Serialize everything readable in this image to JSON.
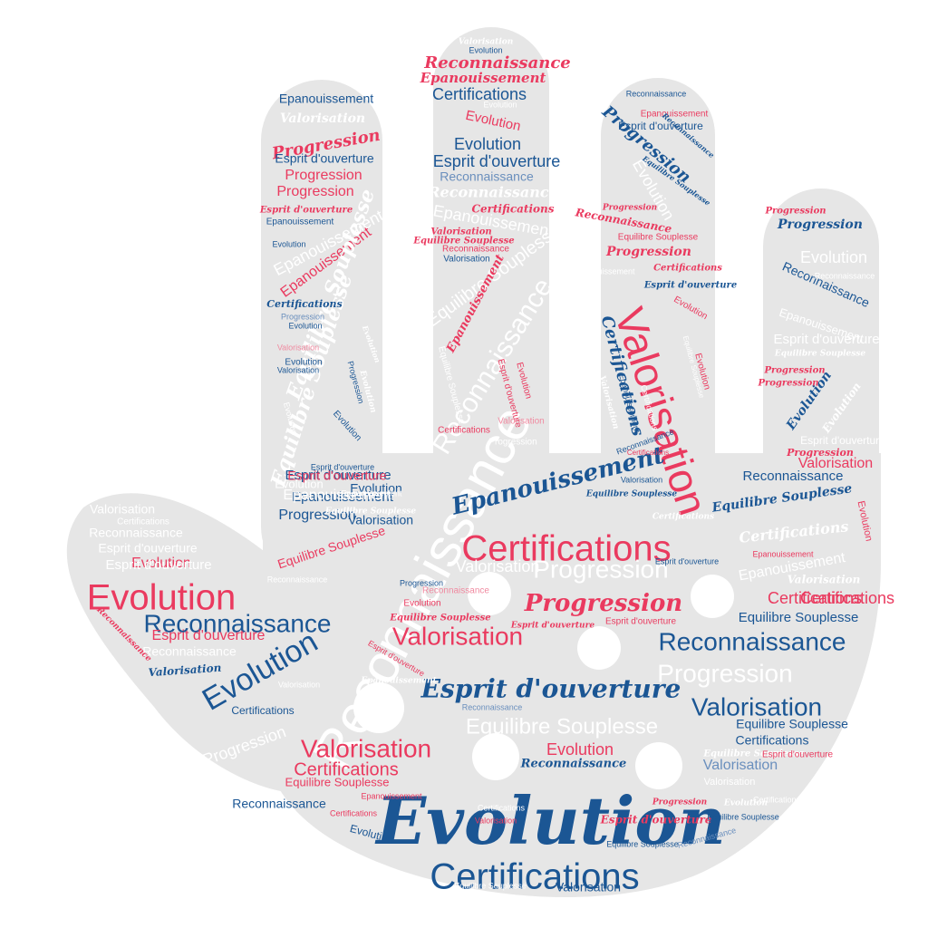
{
  "colors": {
    "hand": "#e6e6e6",
    "pink": "#ea3a5f",
    "blue": "#1b5694",
    "white": "#ffffff",
    "lightblue": "#6a8fbd",
    "lightpink": "#f08aa0"
  },
  "words": [
    {
      "text": "Evolution",
      "color": "blue",
      "style": "script"
    },
    {
      "text": "Certifications",
      "color": "blue",
      "style": "sans"
    },
    {
      "text": "Reconnaissance",
      "color": "white",
      "style": "sans"
    },
    {
      "text": "Valorisation",
      "color": "pink",
      "style": "sans"
    },
    {
      "text": "Certifications",
      "color": "pink",
      "style": "sans"
    },
    {
      "text": "Evolution",
      "color": "pink",
      "style": "sans"
    },
    {
      "text": "Reconnaissance",
      "color": "blue",
      "style": "sans"
    },
    {
      "text": "Evolution",
      "color": "blue",
      "style": "sans"
    },
    {
      "text": "Epanouissement",
      "color": "blue",
      "style": "script"
    },
    {
      "text": "Progression",
      "color": "pink",
      "style": "script"
    },
    {
      "text": "Esprit d'ouverture",
      "color": "blue",
      "style": "script"
    },
    {
      "text": "Valorisation",
      "color": "pink",
      "style": "sans"
    },
    {
      "text": "Reconnaissance",
      "color": "blue",
      "style": "sans"
    },
    {
      "text": "Progression",
      "color": "white",
      "style": "sans"
    },
    {
      "text": "Valorisation",
      "color": "blue",
      "style": "sans"
    },
    {
      "text": "Equilibre Souplesse",
      "color": "white",
      "style": "sans"
    },
    {
      "text": "Valorisation",
      "color": "pink",
      "style": "sans"
    },
    {
      "text": "Progression",
      "color": "white",
      "style": "sans"
    },
    {
      "text": "Reconnaissance",
      "color": "white",
      "style": "sans"
    },
    {
      "text": "Equilibre Souplesse",
      "color": "white",
      "style": "script"
    },
    {
      "text": "Epanouissement",
      "color": "white",
      "style": "sans"
    },
    {
      "text": "Evolution",
      "color": "white",
      "style": "sans"
    },
    {
      "text": "Evolution",
      "color": "blue",
      "style": "sans"
    },
    {
      "text": "Valorisation",
      "color": "white",
      "style": "sans"
    },
    {
      "text": "Esprit d'ouverture",
      "color": "blue",
      "style": "sans"
    },
    {
      "text": "Progression",
      "color": "blue",
      "style": "sans"
    },
    {
      "text": "Certifications",
      "color": "pink",
      "style": "sans"
    },
    {
      "text": "Epanouissement",
      "color": "blue",
      "style": "sans"
    },
    {
      "text": "Certifications",
      "color": "pink",
      "style": "sans"
    },
    {
      "text": "Epanouissement",
      "color": "white",
      "style": "sans"
    },
    {
      "text": "Esprit d'ouverture",
      "color": "pink",
      "style": "sans"
    },
    {
      "text": "Evolution",
      "color": "pink",
      "style": "sans"
    },
    {
      "text": "Equilibre Souplesse",
      "color": "pink",
      "style": "sans"
    },
    {
      "text": "Esprit d'ouverture",
      "color": "pink",
      "style": "sans"
    },
    {
      "text": "Valorisation",
      "color": "white",
      "style": "sans"
    },
    {
      "text": "Reconnaissance",
      "color": "white",
      "style": "sans"
    },
    {
      "text": "Esprit d'ouverture",
      "color": "white",
      "style": "sans"
    },
    {
      "text": "Esprit d'ouverture",
      "color": "white",
      "style": "sans"
    },
    {
      "text": "Certifications",
      "color": "white",
      "style": "sans"
    },
    {
      "text": "Reconnaissance",
      "color": "blue",
      "style": "sans"
    },
    {
      "text": "Reconnaissance",
      "color": "white",
      "style": "sans"
    },
    {
      "text": "Valorisation",
      "color": "blue",
      "style": "script"
    },
    {
      "text": "Certifications",
      "color": "blue",
      "style": "sans"
    },
    {
      "text": "Progression",
      "color": "white",
      "style": "sans"
    },
    {
      "text": "Equilibre Souplesse",
      "color": "pink",
      "style": "sans"
    },
    {
      "text": "Reconnaissance",
      "color": "blue",
      "style": "script"
    },
    {
      "text": "Evolution",
      "color": "pink",
      "style": "sans"
    },
    {
      "text": "Reconnaissance",
      "color": "blue",
      "style": "sans"
    },
    {
      "text": "Progression",
      "color": "pink",
      "style": "script"
    },
    {
      "text": "Esprit d'ouverture",
      "color": "pink",
      "style": "sans"
    },
    {
      "text": "Equilibre Souplesse",
      "color": "blue",
      "style": "sans"
    },
    {
      "text": "Certifications",
      "color": "blue",
      "style": "sans"
    },
    {
      "text": "Equilibre Souplesse",
      "color": "blue",
      "style": "script"
    },
    {
      "text": "Epanouissement",
      "color": "white",
      "style": "sans"
    },
    {
      "text": "Certifications",
      "color": "white",
      "style": "script"
    },
    {
      "text": "Certifications",
      "color": "pink",
      "style": "sans"
    },
    {
      "text": "Equilibre Souplesse",
      "color": "blue",
      "style": "sans"
    },
    {
      "text": "Progression",
      "color": "blue",
      "style": "script"
    },
    {
      "text": "Valorisation",
      "color": "pink",
      "style": "sans"
    },
    {
      "text": "Evolution",
      "color": "white",
      "style": "sans"
    },
    {
      "text": "Evolution",
      "color": "blue",
      "style": "script"
    },
    {
      "text": "Reconnaissance",
      "color": "blue",
      "style": "sans"
    },
    {
      "text": "Reconnaissance",
      "color": "white",
      "style": "sans"
    },
    {
      "text": "Epanouissement",
      "color": "white",
      "style": "sans"
    },
    {
      "text": "Esprit d'ouverture",
      "color": "white",
      "style": "sans"
    },
    {
      "text": "Esprit d'ouverture",
      "color": "white",
      "style": "sans"
    },
    {
      "text": "Evolution",
      "color": "pink",
      "style": "sans"
    },
    {
      "text": "Equilibre Souplesse",
      "color": "white",
      "style": "script"
    },
    {
      "text": "Epanouissement",
      "color": "pink",
      "style": "sans"
    },
    {
      "text": "Valorisation",
      "color": "white",
      "style": "script"
    },
    {
      "text": "Progression",
      "color": "pink",
      "style": "script"
    },
    {
      "text": "Progression",
      "color": "pink",
      "style": "script"
    },
    {
      "text": "Evolution",
      "color": "white",
      "style": "script"
    },
    {
      "text": "Progression",
      "color": "pink",
      "style": "script"
    },
    {
      "text": "Progression",
      "color": "pink",
      "style": "sans"
    },
    {
      "text": "Progression",
      "color": "pink",
      "style": "sans"
    },
    {
      "text": "Esprit d'ouverture",
      "color": "pink",
      "style": "script"
    },
    {
      "text": "Epanouissement",
      "color": "blue",
      "style": "sans"
    },
    {
      "text": "Epanouissement",
      "color": "pink",
      "style": "sans"
    },
    {
      "text": "Equilibre Souplesse",
      "color": "white",
      "style": "script"
    },
    {
      "text": "Certifications",
      "color": "blue",
      "style": "script"
    },
    {
      "text": "Progression",
      "color": "lightblue",
      "style": "sans"
    },
    {
      "text": "Evolution",
      "color": "blue",
      "style": "sans"
    },
    {
      "text": "Valorisation",
      "color": "lightpink",
      "style": "sans"
    },
    {
      "text": "Evolution",
      "color": "blue",
      "style": "sans"
    },
    {
      "text": "Evolution",
      "color": "white",
      "style": "script"
    },
    {
      "text": "Valorisation",
      "color": "white",
      "style": "script"
    },
    {
      "text": "Progression",
      "color": "pink",
      "style": "script"
    },
    {
      "text": "Esprit d'ouverture",
      "color": "blue",
      "style": "sans"
    },
    {
      "text": "Epanouissement",
      "color": "blue",
      "style": "sans"
    },
    {
      "text": "Evolution",
      "color": "blue",
      "style": "sans"
    },
    {
      "text": "Valorisation",
      "color": "blue",
      "style": "sans"
    },
    {
      "text": "Evolution",
      "color": "white",
      "style": "sans"
    },
    {
      "text": "Progression",
      "color": "blue",
      "style": "sans"
    },
    {
      "text": "Evolution",
      "color": "white",
      "style": "script"
    },
    {
      "text": "Evolution",
      "color": "blue",
      "style": "sans"
    },
    {
      "text": "Reconnaissance",
      "color": "pink",
      "style": "script"
    },
    {
      "text": "Epanouissement",
      "color": "pink",
      "style": "script"
    },
    {
      "text": "Certifications",
      "color": "blue",
      "style": "sans"
    },
    {
      "text": "Evolution",
      "color": "pink",
      "style": "sans"
    },
    {
      "text": "Evolution",
      "color": "blue",
      "style": "sans"
    },
    {
      "text": "Esprit d'ouverture",
      "color": "blue",
      "style": "sans"
    },
    {
      "text": "Reconnaissance",
      "color": "lightblue",
      "style": "sans"
    },
    {
      "text": "Reconnaissance",
      "color": "white",
      "style": "script"
    },
    {
      "text": "Certifications",
      "color": "pink",
      "style": "script"
    },
    {
      "text": "Epanouissement",
      "color": "white",
      "style": "sans"
    },
    {
      "text": "Valorisation",
      "color": "pink",
      "style": "script"
    },
    {
      "text": "Equilibre Souplesse",
      "color": "pink",
      "style": "script"
    },
    {
      "text": "Reconnaissance",
      "color": "pink",
      "style": "sans"
    },
    {
      "text": "Valorisation",
      "color": "blue",
      "style": "sans"
    },
    {
      "text": "Equilibre Souplesse",
      "color": "white",
      "style": "sans"
    },
    {
      "text": "Epanouissement",
      "color": "pink",
      "style": "script"
    },
    {
      "text": "Esprit d'ouverture",
      "color": "pink",
      "style": "sans"
    },
    {
      "text": "Valorisation",
      "color": "lightpink",
      "style": "sans"
    },
    {
      "text": "Certifications",
      "color": "pink",
      "style": "sans"
    },
    {
      "text": "Equilibre Souplesse",
      "color": "white",
      "style": "sans"
    },
    {
      "text": "Progression",
      "color": "white",
      "style": "sans"
    },
    {
      "text": "Evolution",
      "color": "pink",
      "style": "sans"
    },
    {
      "text": "Valorisation",
      "color": "white",
      "style": "script"
    },
    {
      "text": "Evolution",
      "color": "blue",
      "style": "sans"
    },
    {
      "text": "Evolution",
      "color": "white",
      "style": "sans"
    },
    {
      "text": "Progression",
      "color": "blue",
      "style": "script"
    },
    {
      "text": "Evolution",
      "color": "white",
      "style": "sans"
    },
    {
      "text": "Reconnaissance",
      "color": "blue",
      "style": "sans"
    },
    {
      "text": "Epanouissement",
      "color": "pink",
      "style": "sans"
    },
    {
      "text": "Esprit d'ouverture",
      "color": "blue",
      "style": "sans"
    },
    {
      "text": "Reconnaissance",
      "color": "blue",
      "style": "script"
    },
    {
      "text": "Equilibre Souplesse",
      "color": "blue",
      "style": "script"
    },
    {
      "text": "Progression",
      "color": "pink",
      "style": "script"
    },
    {
      "text": "Reconnaissance",
      "color": "pink",
      "style": "script"
    },
    {
      "text": "Progression",
      "color": "pink",
      "style": "script"
    },
    {
      "text": "Certifications",
      "color": "pink",
      "style": "script"
    },
    {
      "text": "Esprit d'ouverture",
      "color": "blue",
      "style": "script"
    },
    {
      "text": "Evolution",
      "color": "pink",
      "style": "sans"
    },
    {
      "text": "Certifications",
      "color": "blue",
      "style": "script"
    },
    {
      "text": "Equilibre Souplesse",
      "color": "white",
      "style": "sans"
    },
    {
      "text": "Evolution",
      "color": "pink",
      "style": "sans"
    },
    {
      "text": "Reconnaissance",
      "color": "blue",
      "style": "sans"
    },
    {
      "text": "Equilibre Souplesse",
      "color": "blue",
      "style": "script"
    },
    {
      "text": "Certifications",
      "color": "white",
      "style": "script"
    },
    {
      "text": "Equilibre Souplesse",
      "color": "pink",
      "style": "sans"
    },
    {
      "text": "Epanouissement",
      "color": "white",
      "style": "sans"
    },
    {
      "text": "Valorisation",
      "color": "white",
      "style": "script"
    },
    {
      "text": "Certifications",
      "color": "pink",
      "style": "sans"
    },
    {
      "text": "Epanouissement",
      "color": "blue",
      "style": "sans"
    },
    {
      "text": "Valorisation",
      "color": "blue",
      "style": "sans"
    },
    {
      "text": "Certifications",
      "color": "white",
      "style": "sans"
    },
    {
      "text": "Esprit d'ouverture",
      "color": "blue",
      "style": "sans"
    },
    {
      "text": "Equilibre Souplesse",
      "color": "blue",
      "style": "sans"
    },
    {
      "text": "Esprit d'ouverture",
      "color": "pink",
      "style": "script"
    },
    {
      "text": "Equilibre Souplesse",
      "color": "blue",
      "style": "sans"
    },
    {
      "text": "Reconnaissance",
      "color": "lightblue",
      "style": "sans"
    },
    {
      "text": "Evolution",
      "color": "white",
      "style": "script"
    },
    {
      "text": "Certifications",
      "color": "white",
      "style": "sans"
    },
    {
      "text": "Progression",
      "color": "pink",
      "style": "script"
    },
    {
      "text": "Valorisation",
      "color": "white",
      "style": "sans"
    },
    {
      "text": "Equilibre Souplesse",
      "color": "white",
      "style": "script"
    },
    {
      "text": "Esprit d'ouverture",
      "color": "pink",
      "style": "sans"
    },
    {
      "text": "Valorisation",
      "color": "lightblue",
      "style": "sans"
    },
    {
      "text": "Valorisation",
      "color": "blue",
      "style": "sans"
    },
    {
      "text": "Equilibre Souplesse",
      "color": "white",
      "style": "sans"
    },
    {
      "text": "Certifications",
      "color": "white",
      "style": "sans"
    },
    {
      "text": "Valorisation",
      "color": "pink",
      "style": "sans"
    },
    {
      "text": "Evolution",
      "color": "blue",
      "style": "sans"
    },
    {
      "text": "Certifications",
      "color": "pink",
      "style": "sans"
    },
    {
      "text": "Epanouissement",
      "color": "pink",
      "style": "sans"
    },
    {
      "text": "Reconnaissance",
      "color": "lightblue",
      "style": "sans"
    },
    {
      "text": "Epanouissement",
      "color": "white",
      "style": "script"
    },
    {
      "text": "Esprit d'ouverture",
      "color": "pink",
      "style": "sans"
    },
    {
      "text": "Evolution",
      "color": "pink",
      "style": "sans"
    },
    {
      "text": "Progression",
      "color": "blue",
      "style": "sans"
    },
    {
      "text": "Equilibre Souplesse",
      "color": "white",
      "style": "script"
    },
    {
      "text": "Equilibre Souplesse",
      "color": "pink",
      "style": "script"
    },
    {
      "text": "Reconnaissance",
      "color": "lightpink",
      "style": "sans"
    },
    {
      "text": "Esprit d'ouverture",
      "color": "pink",
      "style": "script"
    },
    {
      "text": "Reconnaissance",
      "color": "pink",
      "style": "script"
    },
    {
      "text": "Valorisation",
      "color": "white",
      "style": "sans"
    },
    {
      "text": "Reconnaissance",
      "color": "white",
      "style": "sans"
    },
    {
      "text": "Esprit d'ouverture",
      "color": "blue",
      "style": "sans"
    },
    {
      "text": "Valorisation",
      "color": "blue",
      "style": "sans"
    },
    {
      "text": "Epanouissement",
      "color": "white",
      "style": "sans"
    },
    {
      "text": "Equilibre Souplesse",
      "color": "white",
      "style": "sans"
    },
    {
      "text": "Evolution",
      "color": "white",
      "style": "sans"
    }
  ]
}
